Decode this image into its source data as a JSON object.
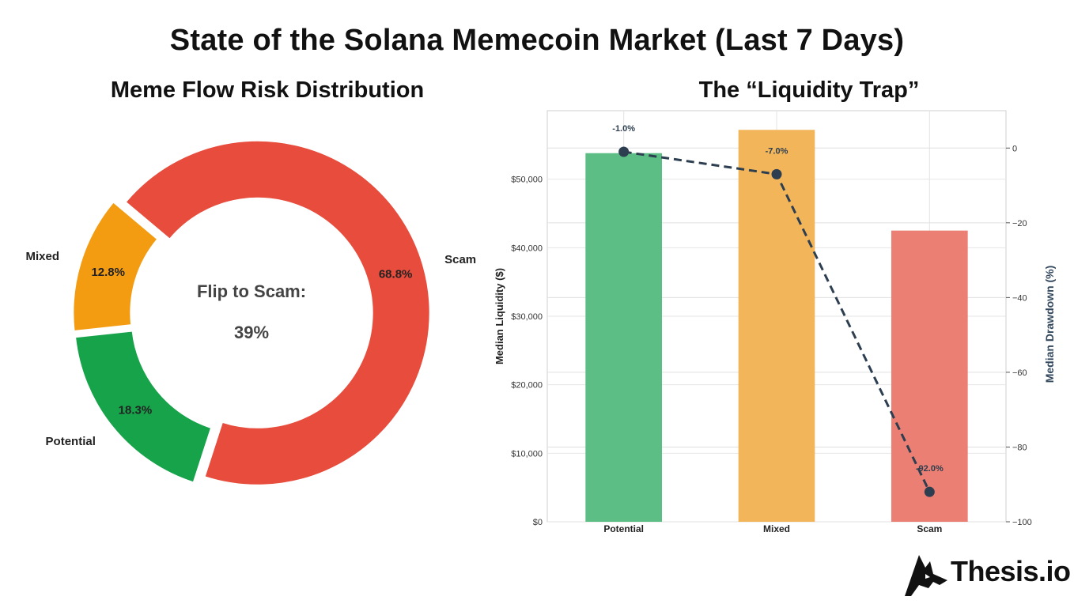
{
  "title": "State of the Solana Memecoin Market (Last 7 Days)",
  "brand": {
    "logo_text": "Thesis.io"
  },
  "chart_data": [
    {
      "type": "pie",
      "title": "Meme Flow Risk Distribution",
      "slices": [
        {
          "label": "Scam",
          "pct_label": "68.8%",
          "value": 68.8,
          "color": "#e74c3c"
        },
        {
          "label": "Potential",
          "pct_label": "18.3%",
          "value": 18.3,
          "color": "#16a34a"
        },
        {
          "label": "Mixed",
          "pct_label": "12.8%",
          "value": 12.8,
          "color": "#f39c12"
        }
      ],
      "center_text": {
        "line1": "Flip to Scam:",
        "line2": "39%"
      }
    },
    {
      "type": "bar",
      "title": "The “Liquidity Trap”",
      "categories": [
        "Potential",
        "Mixed",
        "Scam"
      ],
      "series": [
        {
          "axis": "left",
          "kind": "bar",
          "values": [
            53800,
            57200,
            42500
          ],
          "colors": [
            "#5cbd85",
            "#f3b55a",
            "#ec7f73"
          ]
        },
        {
          "axis": "right",
          "kind": "line",
          "style": "dashed",
          "values": [
            -1.0,
            -7.0,
            -92.0
          ],
          "labels": [
            "-1.0%",
            "-7.0%",
            "-92.0%"
          ],
          "color": "#2c3e50"
        }
      ],
      "ylabel": "Median Liquidity ($)",
      "y2label": "Median Drawdown (%)",
      "ylim": [
        0,
        60000
      ],
      "y2lim": [
        -100,
        10
      ],
      "yticks": [
        0,
        10000,
        20000,
        30000,
        40000,
        50000
      ],
      "yticklabels": [
        "$0",
        "$10,000",
        "$20,000",
        "$30,000",
        "$40,000",
        "$50,000"
      ],
      "y2ticks": [
        0,
        -20,
        -40,
        -60,
        -80,
        -100
      ],
      "y2ticklabels": [
        "0",
        "−20",
        "−40",
        "−60",
        "−80",
        "−100"
      ],
      "grid": true
    }
  ]
}
